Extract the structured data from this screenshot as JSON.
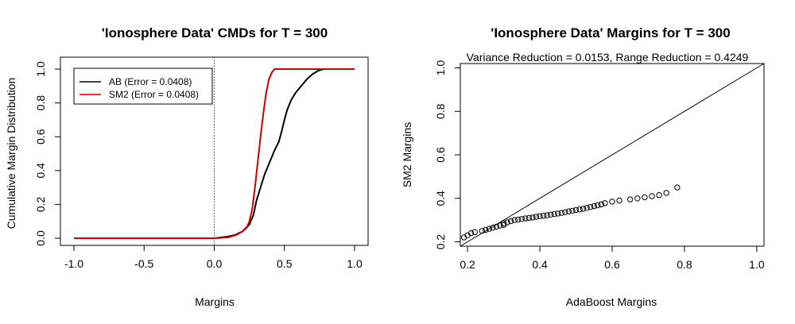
{
  "chart_data": [
    {
      "type": "line",
      "title": "'Ionosphere Data' CMDs for T = 300",
      "xlabel": "Margins",
      "ylabel": "Cumulative Margin Distribution",
      "xlim": [
        -1.0,
        1.0
      ],
      "ylim": [
        0.0,
        1.0
      ],
      "xticks": [
        "-1.0",
        "-0.5",
        "0.0",
        "0.5",
        "1.0"
      ],
      "yticks": [
        "0.0",
        "0.2",
        "0.4",
        "0.6",
        "0.8",
        "1.0"
      ],
      "vline": {
        "x": 0.0,
        "color": "#cc0000",
        "style": "dotted"
      },
      "legend": [
        "AB (Error = 0.0408)",
        "SM2 (Error = 0.0408)"
      ],
      "series": [
        {
          "name": "AB (Error = 0.0408)",
          "color": "#000000",
          "x": [
            -1.0,
            0.0,
            0.05,
            0.1,
            0.15,
            0.2,
            0.25,
            0.28,
            0.3,
            0.33,
            0.36,
            0.4,
            0.43,
            0.46,
            0.48,
            0.5,
            0.52,
            0.55,
            0.58,
            0.62,
            0.66,
            0.7,
            0.74,
            0.78,
            1.0
          ],
          "y": [
            0.0,
            0.0,
            0.005,
            0.01,
            0.02,
            0.04,
            0.08,
            0.14,
            0.22,
            0.3,
            0.38,
            0.46,
            0.52,
            0.57,
            0.63,
            0.7,
            0.76,
            0.82,
            0.86,
            0.9,
            0.94,
            0.97,
            0.99,
            1.0,
            1.0
          ]
        },
        {
          "name": "SM2 (Error = 0.0408)",
          "color": "#cc0000",
          "x": [
            -1.0,
            0.0,
            0.1,
            0.16,
            0.2,
            0.23,
            0.25,
            0.27,
            0.29,
            0.31,
            0.33,
            0.35,
            0.37,
            0.39,
            0.41,
            0.43,
            0.45,
            1.0
          ],
          "y": [
            0.0,
            0.0,
            0.005,
            0.02,
            0.04,
            0.06,
            0.1,
            0.17,
            0.3,
            0.45,
            0.6,
            0.74,
            0.86,
            0.94,
            0.98,
            1.0,
            1.0,
            1.0
          ]
        }
      ]
    },
    {
      "type": "scatter",
      "title": "'Ionosphere Data' Margins for T = 300",
      "subtitle": "Variance Reduction = 0.0153, Range Reduction = 0.4249",
      "xlabel": "AdaBoost Margins",
      "ylabel": "SM2 Margins",
      "xlim": [
        0.18,
        1.02
      ],
      "ylim": [
        0.18,
        1.02
      ],
      "xticks": [
        "0.2",
        "0.4",
        "0.6",
        "0.8",
        "1.0"
      ],
      "yticks": [
        "0.2",
        "0.4",
        "0.6",
        "0.8",
        "1.0"
      ],
      "reference_line": "y = x",
      "series": [
        {
          "name": "margins",
          "x": [
            0.19,
            0.2,
            0.21,
            0.22,
            0.24,
            0.25,
            0.26,
            0.27,
            0.28,
            0.29,
            0.3,
            0.3,
            0.31,
            0.32,
            0.33,
            0.34,
            0.35,
            0.36,
            0.37,
            0.38,
            0.39,
            0.4,
            0.41,
            0.42,
            0.43,
            0.44,
            0.45,
            0.46,
            0.47,
            0.48,
            0.49,
            0.5,
            0.51,
            0.52,
            0.53,
            0.54,
            0.55,
            0.56,
            0.57,
            0.58,
            0.6,
            0.62,
            0.65,
            0.67,
            0.69,
            0.71,
            0.73,
            0.75,
            0.78
          ],
          "y": [
            0.22,
            0.23,
            0.24,
            0.245,
            0.25,
            0.255,
            0.26,
            0.265,
            0.27,
            0.275,
            0.278,
            0.285,
            0.29,
            0.295,
            0.3,
            0.302,
            0.305,
            0.308,
            0.31,
            0.312,
            0.315,
            0.318,
            0.32,
            0.322,
            0.325,
            0.328,
            0.33,
            0.333,
            0.336,
            0.34,
            0.343,
            0.346,
            0.349,
            0.352,
            0.356,
            0.36,
            0.364,
            0.368,
            0.372,
            0.378,
            0.385,
            0.39,
            0.395,
            0.4,
            0.405,
            0.41,
            0.415,
            0.425,
            0.45
          ]
        }
      ]
    }
  ]
}
